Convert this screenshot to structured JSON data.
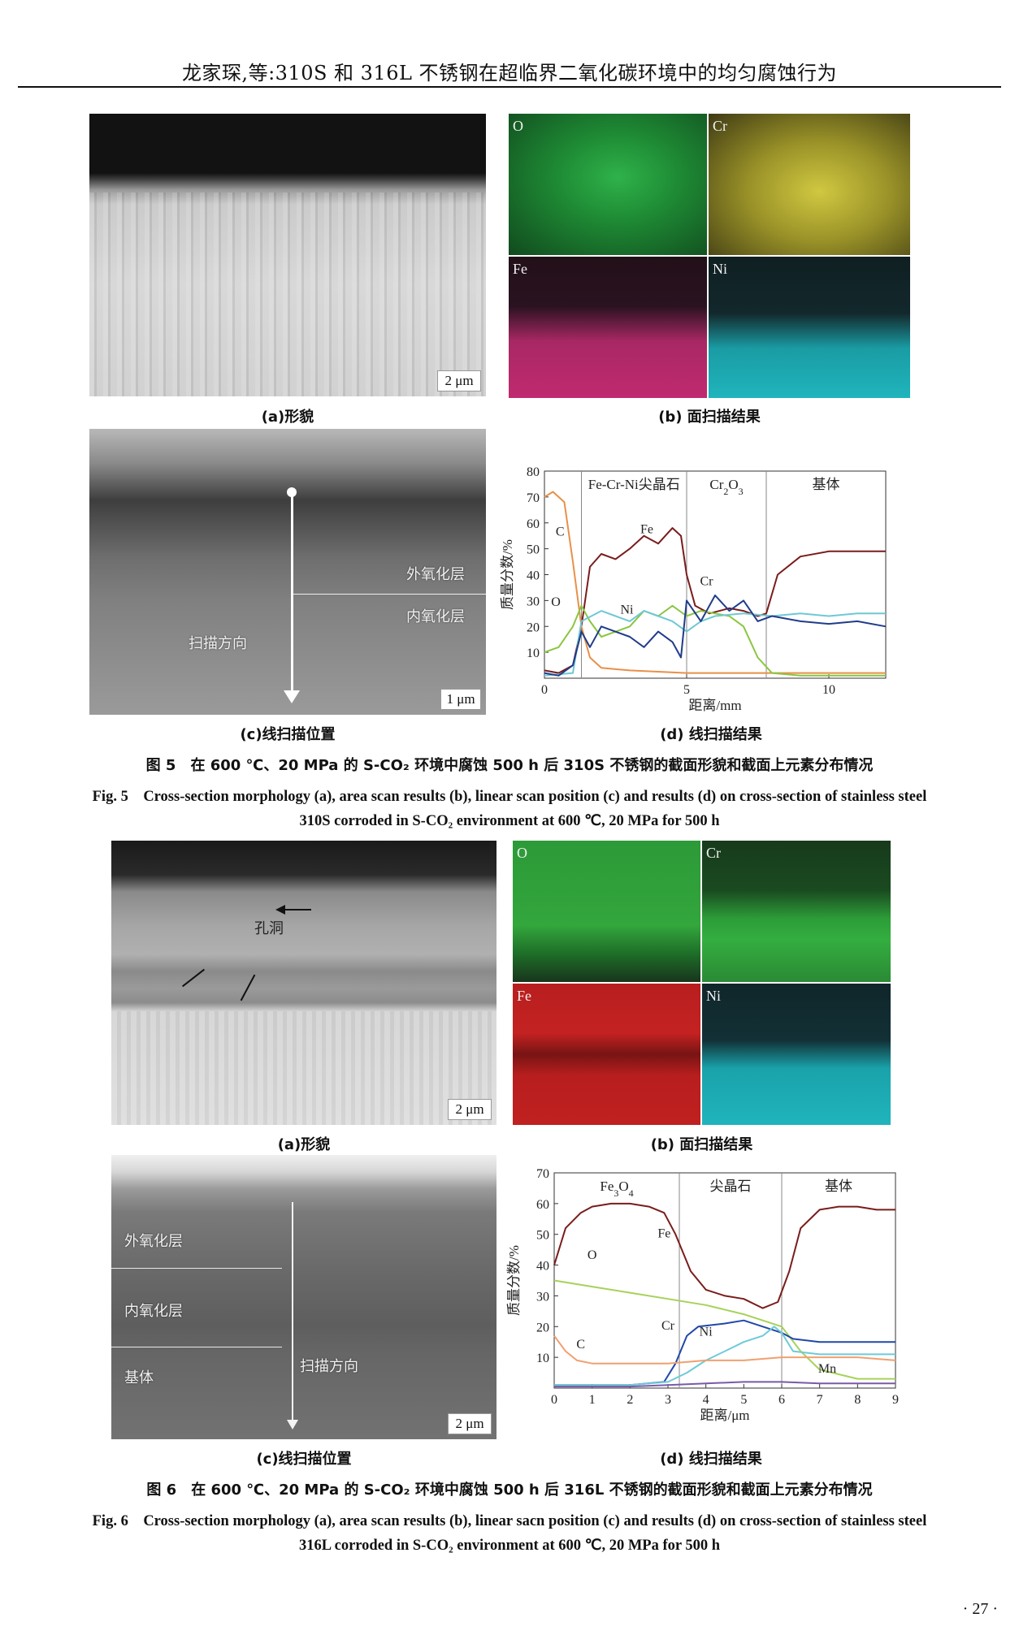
{
  "header": {
    "title": "龙家琛,等:310S 和 316L 不锈钢在超临界二氧化碳环境中的均匀腐蚀行为"
  },
  "fig5": {
    "panel_a": {
      "label": "(a)形貌",
      "scale": "2 μm"
    },
    "panel_b": {
      "label": "(b) 面扫描结果",
      "maps": [
        "O",
        "Cr",
        "Fe",
        "Ni"
      ],
      "colors": {
        "O": "#1f8f3a",
        "Cr": "#a8a028",
        "Fe": "#b8256a",
        "Ni": "#18a0a8"
      }
    },
    "panel_c": {
      "label": "(c)线扫描位置",
      "scale": "1 μm",
      "outer": "外氧化层",
      "inner": "内氧化层",
      "direction": "扫描方向"
    },
    "panel_d": {
      "label": "(d) 线扫描结果"
    },
    "caption_cn": "图 5　在 600 ℃、20 MPa 的 S-CO₂ 环境中腐蚀 500 h 后 310S 不锈钢的截面形貌和截面上元素分布情况",
    "caption_en_1": "Fig. 5　Cross-section morphology (a), area scan results (b), linear scan position (c) and results (d) on cross-section of stainless steel",
    "caption_en_2": "310S corroded in S-CO₂ environment at 600 ℃, 20 MPa for 500 h"
  },
  "fig6": {
    "panel_a": {
      "label": "(a)形貌",
      "scale": "2 μm",
      "pore": "孔洞"
    },
    "panel_b": {
      "label": "(b) 面扫描结果",
      "maps": [
        "O",
        "Cr",
        "Fe",
        "Ni"
      ],
      "colors": {
        "O": "#2fa03a",
        "Cr": "#2fa03a",
        "Fe": "#c02020",
        "Ni": "#18a8b0"
      }
    },
    "panel_c": {
      "label": "(c)线扫描位置",
      "scale": "2 μm",
      "outer": "外氧化层",
      "inner": "内氧化层",
      "base": "基体",
      "direction": "扫描方向"
    },
    "panel_d": {
      "label": "(d) 线扫描结果"
    },
    "caption_cn": "图 6　在 600 ℃、20 MPa 的 S-CO₂ 环境中腐蚀 500 h 后 316L 不锈钢的截面形貌和截面上元素分布情况",
    "caption_en_1": "Fig. 6　Cross-section morphology (a), area scan results (b), linear sacn position (c) and results (d) on cross-section of stainless steel",
    "caption_en_2": "316L corroded in S-CO₂ environment at 600 ℃, 20 MPa for 500 h"
  },
  "page_number": "· 27 ·",
  "chart_data": [
    {
      "type": "line",
      "xlabel": "距离/mm",
      "ylabel": "质量分数/%",
      "xlim": [
        0,
        12
      ],
      "ylim": [
        0,
        80
      ],
      "xticks": [
        0,
        5,
        10
      ],
      "yticks": [
        10,
        20,
        30,
        40,
        50,
        60,
        70,
        80
      ],
      "regions": [
        {
          "label": "Fe-Cr-Ni尖晶石",
          "from": 1.3,
          "to": 5.0
        },
        {
          "label": "Cr2O3",
          "from": 5.0,
          "to": 7.8
        },
        {
          "label": "基体",
          "from": 7.8,
          "to": 12
        }
      ],
      "boundaries": [
        1.3,
        5.0,
        7.8
      ],
      "series": [
        {
          "name": "Fe",
          "color": "#7a1c1c",
          "x": [
            0,
            0.5,
            1.0,
            1.3,
            1.6,
            2.0,
            2.5,
            3.0,
            3.5,
            4.0,
            4.5,
            4.8,
            5.0,
            5.3,
            5.8,
            6.5,
            7.0,
            7.5,
            7.8,
            8.2,
            9.0,
            10.0,
            11.0,
            12.0
          ],
          "y": [
            3,
            2,
            5,
            20,
            43,
            48,
            46,
            50,
            55,
            52,
            58,
            55,
            40,
            28,
            25,
            27,
            26,
            24,
            25,
            40,
            47,
            49,
            49,
            49
          ]
        },
        {
          "name": "C",
          "color": "#e8904a",
          "x": [
            0,
            0.3,
            0.7,
            1.0,
            1.3,
            1.6,
            2.0,
            3.0,
            5.0,
            8.0,
            12.0
          ],
          "y": [
            70,
            72,
            68,
            45,
            20,
            8,
            4,
            3,
            2,
            2,
            2
          ]
        },
        {
          "name": "O",
          "color": "#8ac640",
          "x": [
            0,
            0.5,
            1.0,
            1.3,
            1.6,
            2.0,
            3.0,
            3.5,
            4.0,
            4.5,
            5.0,
            5.5,
            6.5,
            7.0,
            7.5,
            8.0,
            9.0,
            12.0
          ],
          "y": [
            10,
            12,
            20,
            28,
            22,
            16,
            20,
            26,
            24,
            28,
            24,
            26,
            24,
            20,
            8,
            2,
            1,
            1
          ]
        },
        {
          "name": "Ni",
          "color": "#6fc8d4",
          "x": [
            0,
            1.0,
            1.3,
            2.0,
            2.5,
            3.0,
            3.5,
            4.0,
            4.5,
            5.0,
            5.5,
            6.0,
            7.0,
            8.0,
            9.0,
            10.0,
            11.0,
            12.0
          ],
          "y": [
            1,
            2,
            22,
            26,
            24,
            22,
            26,
            24,
            22,
            18,
            22,
            24,
            25,
            24,
            25,
            24,
            25,
            25
          ]
        },
        {
          "name": "Cr",
          "color": "#203c8a",
          "x": [
            0,
            0.5,
            1.0,
            1.3,
            1.6,
            2.0,
            3.0,
            3.5,
            4.0,
            4.5,
            4.8,
            5.0,
            5.5,
            6.0,
            6.5,
            7.0,
            7.5,
            8.0,
            9.0,
            10.0,
            11.0,
            12.0
          ],
          "y": [
            2,
            1,
            5,
            18,
            12,
            20,
            16,
            12,
            18,
            14,
            8,
            30,
            22,
            32,
            26,
            30,
            22,
            24,
            22,
            21,
            22,
            20
          ]
        }
      ],
      "annotations": [
        "C",
        "O",
        "Fe",
        "Ni",
        "Cr"
      ]
    },
    {
      "type": "line",
      "xlabel": "距离/μm",
      "ylabel": "质量分数/%",
      "xlim": [
        0,
        9
      ],
      "ylim": [
        0,
        70
      ],
      "xticks": [
        0,
        1,
        2,
        3,
        4,
        5,
        6,
        7,
        8,
        9
      ],
      "yticks": [
        10,
        20,
        30,
        40,
        50,
        60,
        70
      ],
      "regions": [
        {
          "label": "Fe3O4",
          "from": 0,
          "to": 3.3
        },
        {
          "label": "尖晶石",
          "from": 3.3,
          "to": 6.0
        },
        {
          "label": "基体",
          "from": 6.0,
          "to": 9
        }
      ],
      "boundaries": [
        3.3,
        6.0
      ],
      "series": [
        {
          "name": "Fe",
          "color": "#7a1c1c",
          "x": [
            0,
            0.3,
            0.7,
            1.0,
            1.5,
            2.0,
            2.5,
            2.9,
            3.2,
            3.6,
            4.0,
            4.5,
            5.0,
            5.5,
            5.9,
            6.2,
            6.5,
            7.0,
            7.5,
            8.0,
            8.5,
            9.0
          ],
          "y": [
            40,
            52,
            57,
            59,
            60,
            60,
            59,
            57,
            50,
            38,
            32,
            30,
            29,
            26,
            28,
            38,
            52,
            58,
            59,
            59,
            58,
            58
          ]
        },
        {
          "name": "O",
          "color": "#a6d25a",
          "x": [
            0,
            1,
            2,
            3,
            4,
            5,
            6,
            6.5,
            7,
            8,
            9
          ],
          "y": [
            35,
            33,
            31,
            29,
            27,
            24,
            20,
            12,
            6,
            3,
            3
          ]
        },
        {
          "name": "Cr",
          "color": "#2048a8",
          "x": [
            0,
            1,
            2,
            2.9,
            3.2,
            3.5,
            3.8,
            4.5,
            5.0,
            5.5,
            6.0,
            6.3,
            7.0,
            8.0,
            9.0
          ],
          "y": [
            1,
            1,
            1,
            2,
            8,
            17,
            20,
            21,
            22,
            20,
            18,
            16,
            15,
            15,
            15
          ]
        },
        {
          "name": "Ni",
          "color": "#6fcad8",
          "x": [
            0,
            1,
            2,
            3,
            3.5,
            4.0,
            4.5,
            5.0,
            5.5,
            5.8,
            6.0,
            6.3,
            7.0,
            8.0,
            9.0
          ],
          "y": [
            1,
            1,
            1,
            2,
            5,
            9,
            12,
            15,
            17,
            20,
            18,
            12,
            11,
            11,
            11
          ]
        },
        {
          "name": "C",
          "color": "#f0a070",
          "x": [
            0,
            0.3,
            0.6,
            1.0,
            2.0,
            3.0,
            4.0,
            5.0,
            6.0,
            7.0,
            8.0,
            9.0
          ],
          "y": [
            17,
            12,
            9,
            8,
            8,
            8,
            9,
            9,
            10,
            10,
            10,
            9
          ]
        },
        {
          "name": "Mn",
          "color": "#7a5aa8",
          "x": [
            0,
            1,
            2,
            3,
            4,
            5,
            6,
            7,
            8,
            9
          ],
          "y": [
            0.5,
            0.5,
            0.5,
            1,
            1.5,
            2,
            2,
            1.5,
            1.5,
            1.5
          ]
        }
      ],
      "annotations": [
        "O",
        "Fe",
        "Cr",
        "Ni",
        "C",
        "Mn"
      ]
    }
  ]
}
